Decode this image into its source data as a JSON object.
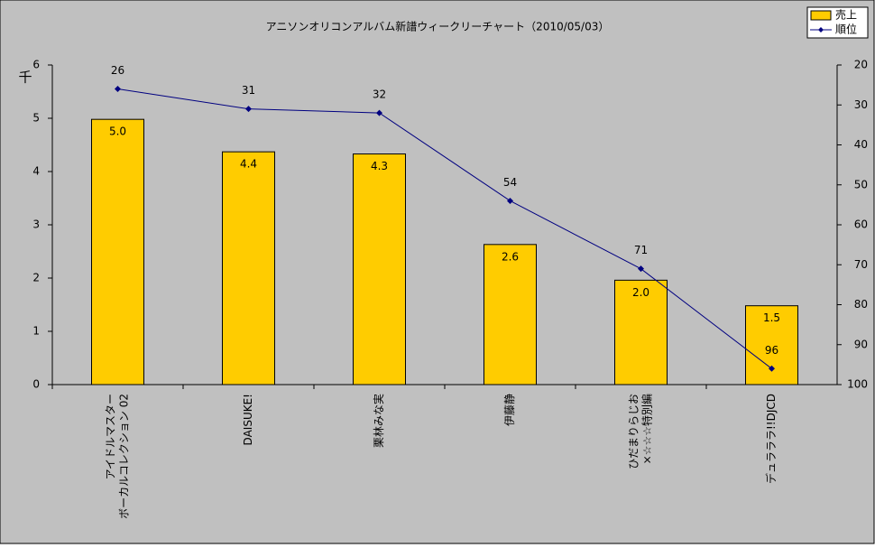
{
  "chart_data": {
    "type": "bar_line",
    "title": "アニソンオリコンアルバム新譜ウィークリーチャート（2010/05/03）",
    "y_unit_label": "千",
    "categories": [
      [
        "アイドルマスター",
        "ボーカルコレクション 02"
      ],
      [
        "DAISUKE!"
      ],
      [
        "栗林みな実"
      ],
      [
        "伊藤静"
      ],
      [
        "ひだまりらじお",
        "×☆☆☆特別編"
      ],
      [
        "デュラララ!!DJCD"
      ]
    ],
    "series": [
      {
        "name": "売上",
        "type": "bar",
        "color": "#ffcc00",
        "values": [
          4.98,
          4.37,
          4.33,
          2.63,
          1.96,
          1.48
        ],
        "value_labels": [
          "5.0",
          "4.4",
          "4.3",
          "2.6",
          "2.0",
          "1.5"
        ]
      },
      {
        "name": "順位",
        "type": "line",
        "axis": "y2",
        "color": "#000080",
        "values": [
          26,
          31,
          32,
          54,
          71,
          96
        ]
      }
    ],
    "ylim": [
      0,
      6
    ],
    "yticks": [
      0,
      1,
      2,
      3,
      4,
      5,
      6
    ],
    "y2lim": [
      100,
      20
    ],
    "y2ticks": [
      20,
      30,
      40,
      50,
      60,
      70,
      80,
      90,
      100
    ],
    "grid": false,
    "legend": "top-right"
  }
}
